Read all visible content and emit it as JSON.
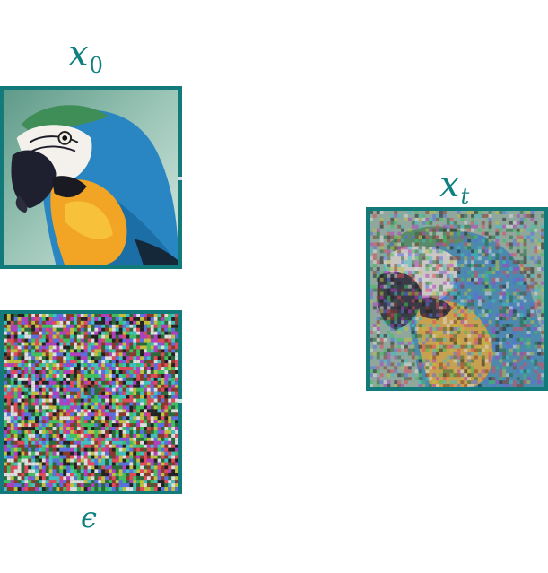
{
  "labels": {
    "x0_base": "x",
    "x0_sub": "0",
    "xt_base": "x",
    "xt_sub": "t",
    "eps": "ϵ"
  },
  "images": {
    "x0": "parrot-image",
    "eps": "gaussian-noise-image",
    "xt": "noisy-parrot-image"
  },
  "colors": {
    "label": "#0f8080",
    "frame": "#127a7a"
  }
}
